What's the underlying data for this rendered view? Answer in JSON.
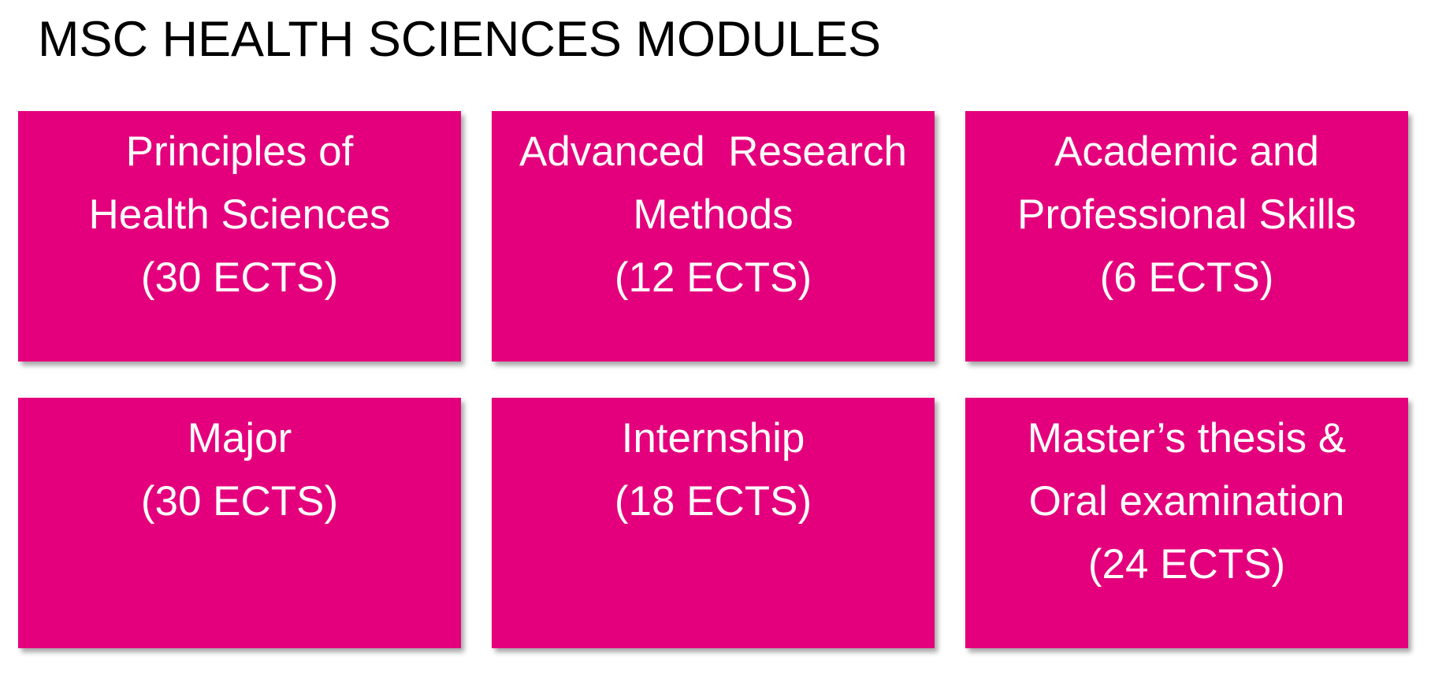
{
  "title": "MSC HEALTH SCIENCES MODULES",
  "accent_color": "#E4007C",
  "modules": [
    {
      "lines": [
        "Principles of",
        "Health Sciences",
        "(30 ECTS)"
      ]
    },
    {
      "lines": [
        "Advanced  Research",
        "Methods",
        "(12 ECTS)"
      ]
    },
    {
      "lines": [
        "Academic and",
        "Professional Skills",
        "(6 ECTS)"
      ]
    },
    {
      "lines": [
        "Major",
        "(30 ECTS)"
      ]
    },
    {
      "lines": [
        "Internship",
        "(18 ECTS)"
      ]
    },
    {
      "lines": [
        "Master’s thesis &",
        "Oral examination",
        "(24 ECTS)"
      ]
    }
  ]
}
